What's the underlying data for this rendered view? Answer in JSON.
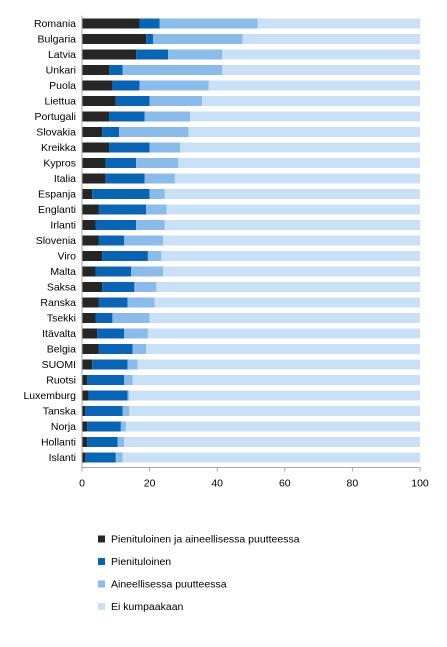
{
  "chart_data": {
    "type": "bar",
    "orientation": "horizontal",
    "stacked": true,
    "title": "",
    "xlabel": "",
    "ylabel": "",
    "xlim": [
      0,
      100
    ],
    "xticks": [
      0,
      20,
      40,
      60,
      80,
      100
    ],
    "grid": false,
    "legend_position": "bottom",
    "categories": [
      "Romania",
      "Bulgaria",
      "Latvia",
      "Unkari",
      "Puola",
      "Liettua",
      "Portugali",
      "Slovakia",
      "Kreikka",
      "Kypros",
      "Italia",
      "Espanja",
      "Englanti",
      "Irlanti",
      "Slovenia",
      "Viro",
      "Malta",
      "Saksa",
      "Ranska",
      "Tsekki",
      "Itävalta",
      "Belgia",
      "SUOMI",
      "Ruotsi",
      "Luxemburg",
      "Tanska",
      "Norja",
      "Hollanti",
      "Islanti"
    ],
    "series": [
      {
        "name": "Pienituloinen ja aineellisessa puutteessa",
        "color": "#262626",
        "values": [
          17,
          19,
          16,
          8,
          9,
          10,
          8,
          6,
          8,
          7,
          7,
          3,
          5,
          4,
          5,
          6,
          4,
          6,
          5,
          4,
          4.5,
          5,
          3,
          1.5,
          2,
          1,
          1.5,
          1.5,
          1
        ]
      },
      {
        "name": "Pienituloinen",
        "color": "#0a64b4",
        "values": [
          6,
          2,
          9.5,
          4,
          8,
          10,
          10.5,
          5,
          12,
          9,
          11.5,
          17,
          14,
          12,
          7.5,
          13.5,
          10.5,
          9.5,
          8.5,
          5,
          8,
          10,
          10.5,
          11,
          11.5,
          11,
          10,
          9,
          9
        ]
      },
      {
        "name": "Aineellisessa puutteessa",
        "color": "#8bbbe8",
        "values": [
          29,
          26.5,
          16,
          29.5,
          20.5,
          15.5,
          13.5,
          20.5,
          9,
          12.5,
          9,
          4.5,
          6,
          8.5,
          11.5,
          4,
          9.5,
          6.5,
          8,
          11,
          7,
          4,
          3,
          2.5,
          0.5,
          2,
          1.5,
          2,
          2
        ]
      },
      {
        "name": "Ei kumpaakaan",
        "color": "#c9e0f6",
        "values": [
          48,
          52.5,
          58.5,
          58.5,
          62.5,
          64.5,
          68,
          68.5,
          71,
          71.5,
          72.5,
          75.5,
          75,
          75.5,
          76,
          76.5,
          76,
          78,
          78.5,
          80,
          80.5,
          81,
          83.5,
          85,
          86,
          86,
          87,
          87.5,
          88
        ]
      }
    ]
  }
}
